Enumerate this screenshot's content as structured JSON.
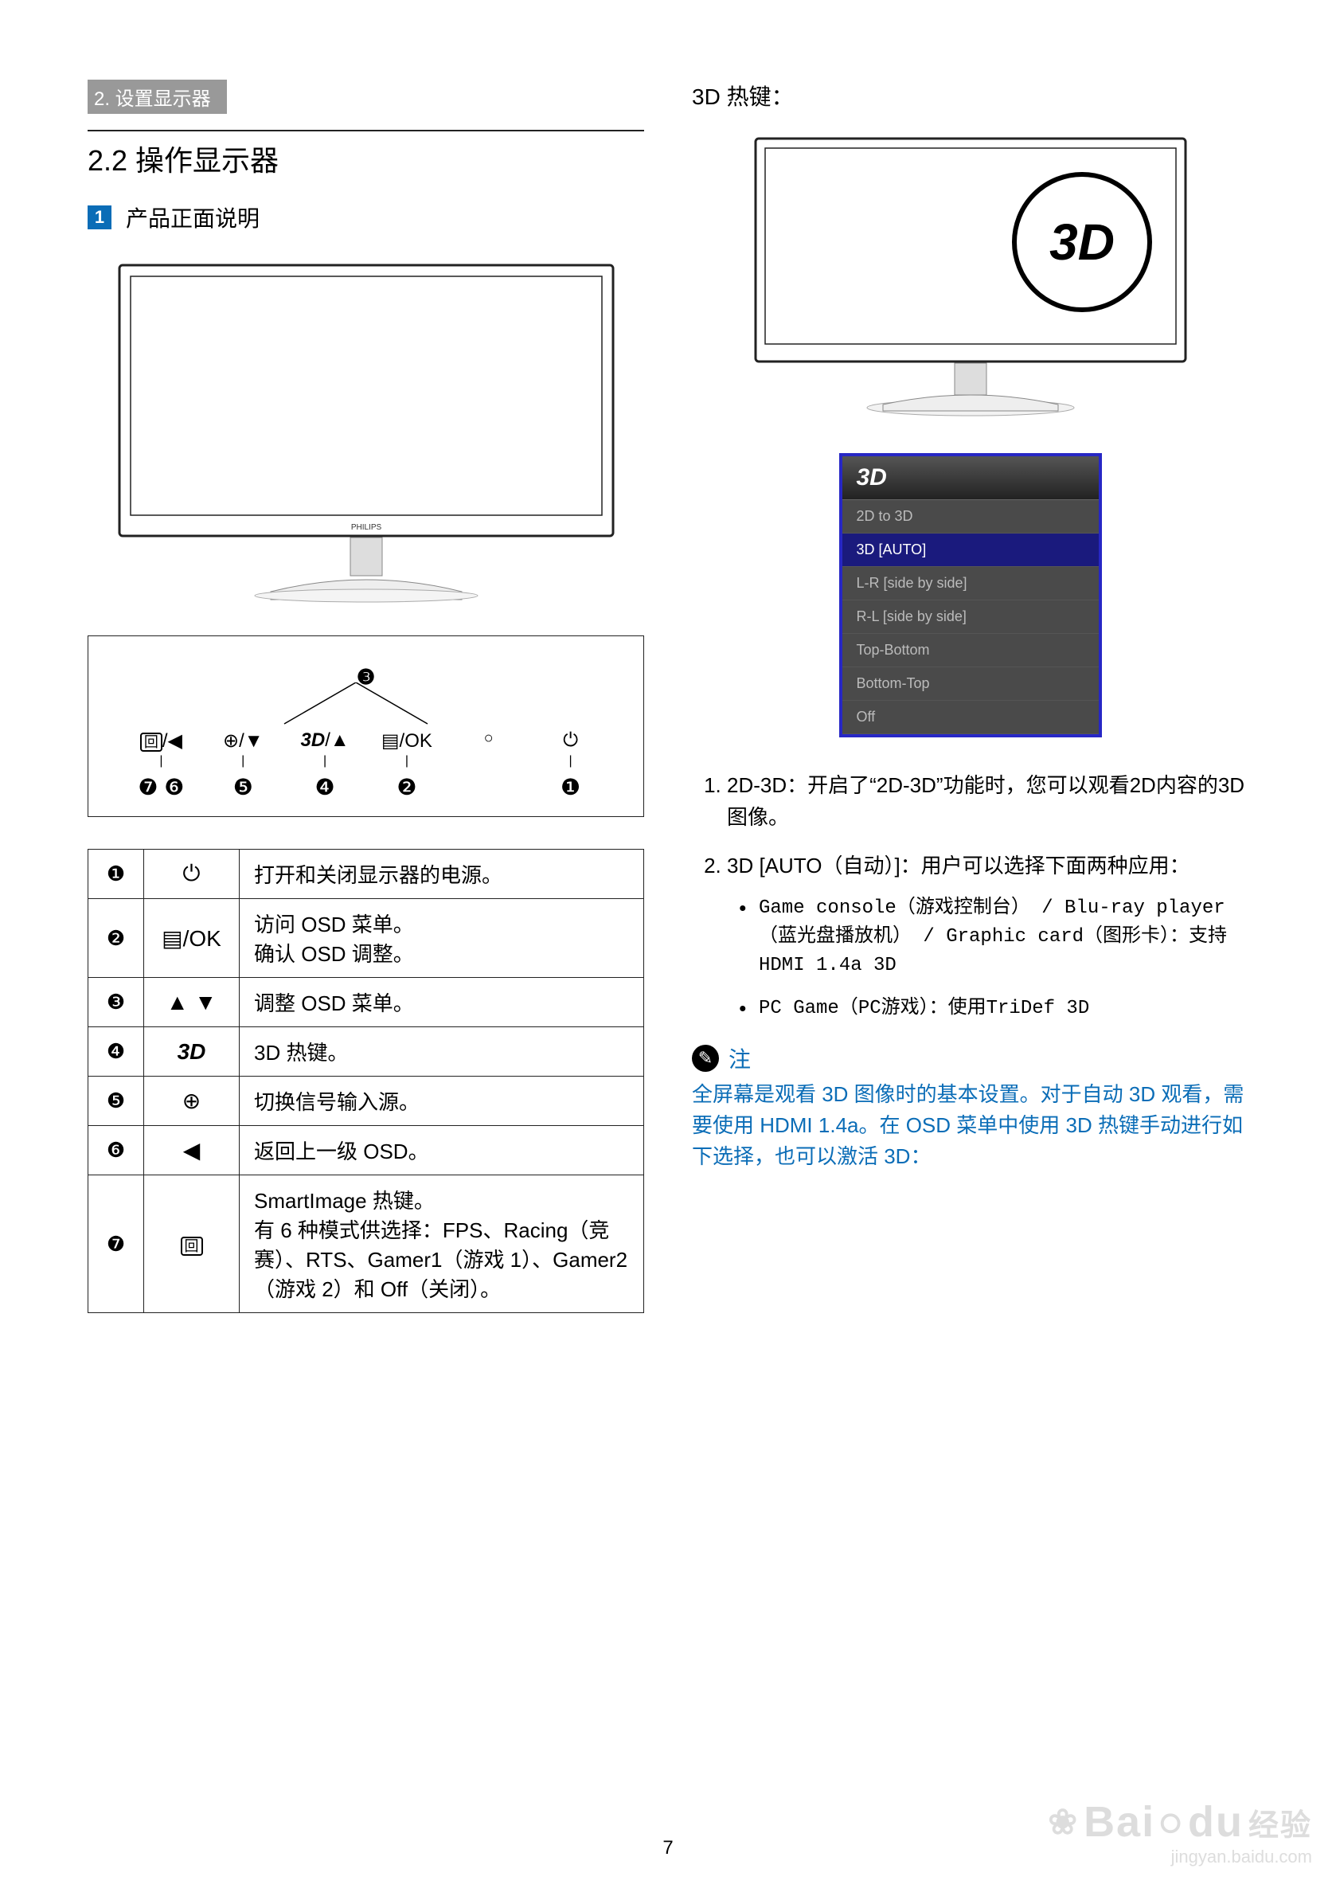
{
  "breadcrumb": "2. 设置显示器",
  "section_title": "2.2  操作显示器",
  "subsection_badge": "1",
  "subsection_title": "产品正面说明",
  "button_diagram": {
    "top_label": "❸",
    "labels": [
      "回/◀",
      "⊕/▼",
      "3D/▲",
      "▤/OK",
      "○",
      "⏻"
    ],
    "numbers": [
      "❼  ❻",
      "❺",
      "❹",
      "❷",
      "",
      "❶"
    ]
  },
  "table": [
    {
      "idx": "❶",
      "icon": "⏻",
      "desc": "打开和关闭显示器的电源。"
    },
    {
      "idx": "❷",
      "icon": "▤/OK",
      "desc": "访问 OSD 菜单。\n确认 OSD 调整。"
    },
    {
      "idx": "❸",
      "icon": "▲ ▼",
      "desc": "调整 OSD 菜单。"
    },
    {
      "idx": "❹",
      "icon": "3D",
      "desc": "3D 热键。"
    },
    {
      "idx": "❺",
      "icon": "⊕",
      "desc": "切换信号输入源。"
    },
    {
      "idx": "❻",
      "icon": "◀",
      "desc": "返回上一级 OSD。"
    },
    {
      "idx": "❼",
      "icon": "回",
      "desc": "SmartImage 热键。\n有 6 种模式供选择：FPS、Racing（竞赛）、RTS、Gamer1（游戏 1）、Gamer2（游戏 2）和 Off（关闭）。"
    }
  ],
  "right_title": "3D 热键：",
  "osd": {
    "header": "3D",
    "items": [
      {
        "label": "2D to 3D",
        "selected": false
      },
      {
        "label": "3D [AUTO]",
        "selected": true
      },
      {
        "label": "L-R [side by side]",
        "selected": false
      },
      {
        "label": "R-L [side by side]",
        "selected": false
      },
      {
        "label": "Top-Bottom",
        "selected": false
      },
      {
        "label": "Bottom-Top",
        "selected": false
      },
      {
        "label": "Off",
        "selected": false
      }
    ]
  },
  "list": [
    "2D-3D：开启了“2D-3D”功能时，您可以观看2D内容的3D图像。",
    "3D [AUTO（自动）]：用户可以选择下面两种应用："
  ],
  "bullets": [
    "Game console（游戏控制台） / Blu-ray player（蓝光盘播放机） / Graphic card（图形卡）：支持HDMI 1.4a 3D",
    "PC Game（PC游戏）：使用TriDef 3D"
  ],
  "note": {
    "label": "注",
    "body": "全屏幕是观看 3D 图像时的基本设置。对于自动 3D 观看，需要使用 HDMI 1.4a。在 OSD 菜单中使用 3D 热键手动进行如下选择，也可以激活 3D："
  },
  "page_number": "7",
  "watermark_brand": "Bai",
  "watermark_brand2": "du",
  "watermark_cn": "经验",
  "watermark_url": "jingyan.baidu.com",
  "monitor_brand": "PHILIPS",
  "threeD_label": "3D",
  "colors": {
    "accent": "#0b6db7",
    "osd_border": "#2727c5",
    "osd_bg": "#4a4a4a",
    "osd_selected": "#1a1a7d",
    "breadcrumb_bg": "#999999"
  }
}
